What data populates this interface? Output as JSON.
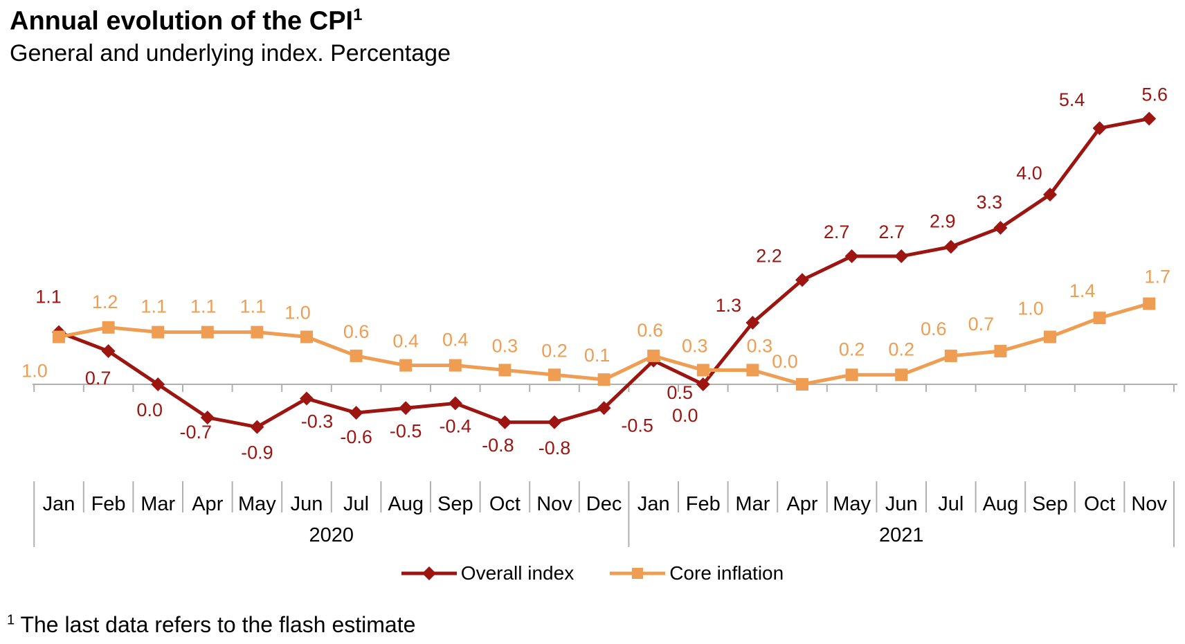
{
  "header": {
    "title": "Annual evolution of the CPI",
    "title_superscript": "1",
    "subtitle": "General and underlying index. Percentage"
  },
  "chart_data": {
    "type": "line",
    "x": [
      "Jan",
      "Feb",
      "Mar",
      "Apr",
      "May",
      "Jun",
      "Jul",
      "Aug",
      "Sep",
      "Oct",
      "Nov",
      "Dec",
      "Jan",
      "Feb",
      "Mar",
      "Apr",
      "May",
      "Jun",
      "Jul",
      "Aug",
      "Sep",
      "Oct",
      "Nov"
    ],
    "year_groups": [
      {
        "label": "2020",
        "months": 12
      },
      {
        "label": "2021",
        "months": 11
      }
    ],
    "ylim": [
      -0.9,
      5.6
    ],
    "baseline": 0,
    "grid": false,
    "legend_position": "bottom",
    "value_labels": "one_decimal",
    "series": [
      {
        "id": "overall",
        "name": "Overall index",
        "marker": "diamond",
        "color": "#9C1510",
        "values": [
          1.1,
          0.7,
          0.0,
          -0.7,
          -0.9,
          -0.3,
          -0.6,
          -0.5,
          -0.4,
          -0.8,
          -0.8,
          -0.5,
          0.5,
          0.0,
          1.3,
          2.2,
          2.7,
          2.7,
          2.9,
          3.3,
          4.0,
          5.4,
          5.6
        ],
        "label_offsets": [
          [
            -15,
            -42
          ],
          [
            -15,
            48
          ],
          [
            -12,
            46
          ],
          [
            -17,
            30
          ],
          [
            0,
            46
          ],
          [
            15,
            42
          ],
          [
            0,
            44
          ],
          [
            0,
            42
          ],
          [
            0,
            42
          ],
          [
            -10,
            42
          ],
          [
            0,
            46
          ],
          [
            48,
            34
          ],
          [
            38,
            55
          ],
          [
            -26,
            54
          ],
          [
            -35,
            -16
          ],
          [
            -48,
            -26
          ],
          [
            -22,
            -26
          ],
          [
            -14,
            -26
          ],
          [
            -12,
            -28
          ],
          [
            -16,
            -28
          ],
          [
            -30,
            -22
          ],
          [
            -40,
            -32
          ],
          [
            8,
            -26
          ]
        ]
      },
      {
        "id": "core",
        "name": "Core inflation",
        "marker": "square",
        "color": "#EE9D52",
        "values": [
          1.0,
          1.2,
          1.1,
          1.1,
          1.1,
          1.0,
          0.6,
          0.4,
          0.4,
          0.3,
          0.2,
          0.1,
          0.6,
          0.3,
          0.3,
          0.0,
          0.2,
          0.2,
          0.6,
          0.7,
          1.0,
          1.4,
          1.7
        ],
        "label_offsets": [
          [
            -35,
            58
          ],
          [
            -5,
            -28
          ],
          [
            -6,
            -28
          ],
          [
            -6,
            -28
          ],
          [
            -6,
            -28
          ],
          [
            -13,
            -26
          ],
          [
            0,
            -26
          ],
          [
            0,
            -26
          ],
          [
            0,
            -28
          ],
          [
            0,
            -26
          ],
          [
            0,
            -26
          ],
          [
            -10,
            -26
          ],
          [
            -5,
            -28
          ],
          [
            -12,
            -26
          ],
          [
            10,
            -26
          ],
          [
            -25,
            -24
          ],
          [
            0,
            -28
          ],
          [
            0,
            -28
          ],
          [
            -25,
            -30
          ],
          [
            -28,
            -30
          ],
          [
            -28,
            -32
          ],
          [
            -25,
            -30
          ],
          [
            12,
            -30
          ]
        ]
      }
    ]
  },
  "legend": {
    "items": [
      {
        "label": "Overall index",
        "series": "overall"
      },
      {
        "label": "Core inflation",
        "series": "core"
      }
    ]
  },
  "colors": {
    "overall": "#9C1510",
    "core": "#EE9D52",
    "axis": "#B0B0B0",
    "text": "#000000"
  },
  "footnote": {
    "superscript": "1",
    "text": "The last data refers to the flash estimate"
  }
}
